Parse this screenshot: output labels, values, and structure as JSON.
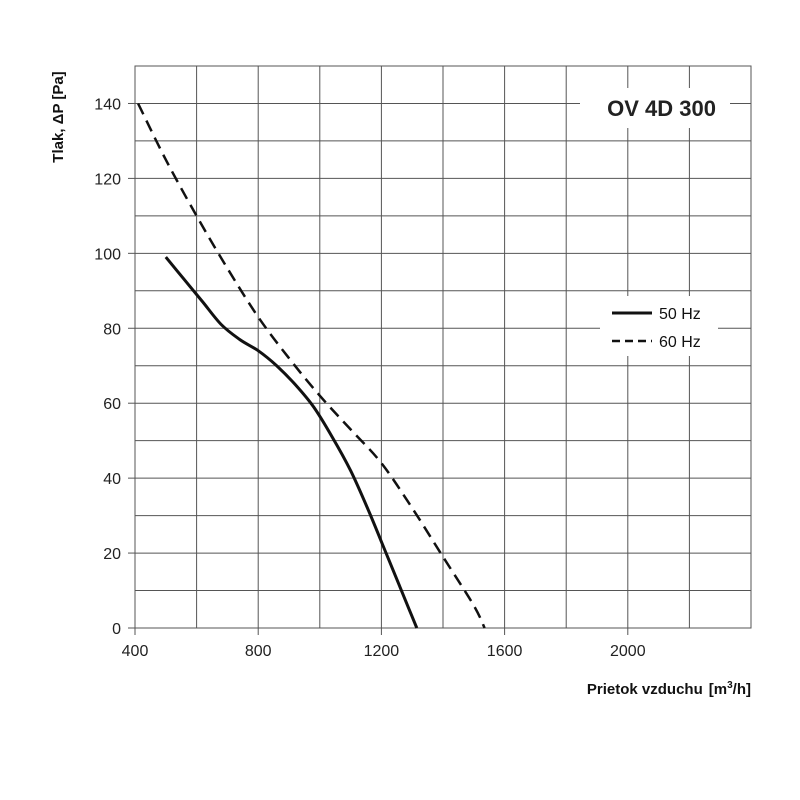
{
  "chart_data": {
    "type": "line",
    "title": "OV 4D 300",
    "xlabel": {
      "main": "Prietok vzduchu",
      "unit_open": "[m",
      "unit_sup": "3",
      "unit_close": "/h]"
    },
    "ylabel": "Tlak, ΔP [Pa]",
    "xlim": [
      400,
      2400
    ],
    "ylim": [
      0,
      150
    ],
    "x_ticks": [
      400,
      800,
      1200,
      1600,
      2000
    ],
    "x_tick_labels": [
      "400",
      "800",
      "1200",
      "1600",
      "2000"
    ],
    "y_ticks": [
      0,
      20,
      40,
      60,
      80,
      100,
      120,
      140
    ],
    "y_tick_labels": [
      "0",
      "20",
      "40",
      "60",
      "80",
      "100",
      "120",
      "140"
    ],
    "x_grid_step": 200,
    "y_grid_step": 10,
    "grid": true,
    "legend_position": "right",
    "series": [
      {
        "name": "50 Hz",
        "style": "solid",
        "color": "#111111",
        "x": [
          500,
          560,
          620,
          680,
          740,
          800,
          860,
          920,
          980,
          1040,
          1100,
          1160,
          1220,
          1260,
          1290,
          1315
        ],
        "y": [
          99,
          93,
          87,
          81,
          77,
          74,
          70,
          65,
          59,
          51,
          42,
          31,
          19,
          11,
          5,
          0
        ]
      },
      {
        "name": "60 Hz",
        "style": "dashed",
        "color": "#111111",
        "x": [
          410,
          500,
          600,
          700,
          800,
          900,
          1000,
          1100,
          1200,
          1300,
          1400,
          1500,
          1535
        ],
        "y": [
          140,
          125,
          110,
          96,
          83,
          72,
          62,
          53,
          44,
          32,
          19,
          6,
          0
        ]
      }
    ]
  }
}
